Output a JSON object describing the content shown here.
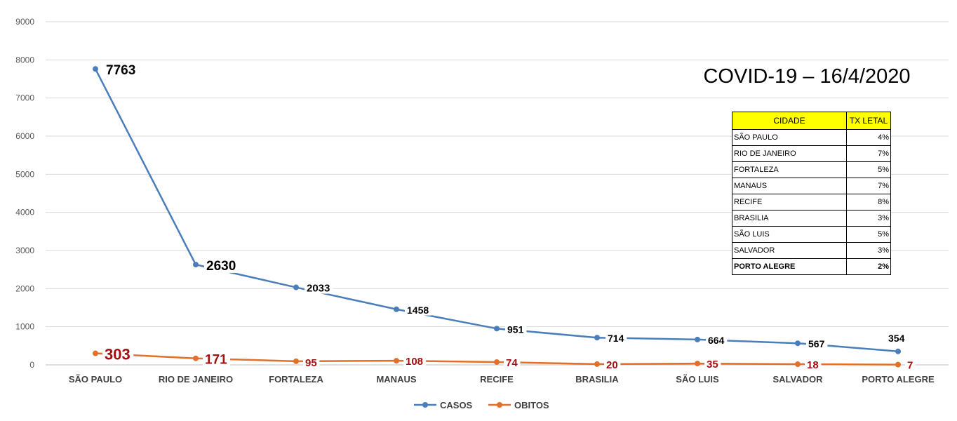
{
  "chart_data": {
    "type": "line",
    "title": "COVID-19 – 16/4/2020",
    "categories": [
      "SÃO PAULO",
      "RIO DE JANEIRO",
      "FORTALEZA",
      "MANAUS",
      "RECIFE",
      "BRASILIA",
      "SÃO LUIS",
      "SALVADOR",
      "PORTO ALEGRE"
    ],
    "series": [
      {
        "name": "CASOS",
        "color": "#4a7ebb",
        "values": [
          7763,
          2630,
          2033,
          1458,
          951,
          714,
          664,
          567,
          354
        ]
      },
      {
        "name": "OBITOS",
        "color": "#e0702a",
        "values": [
          303,
          171,
          95,
          108,
          74,
          20,
          35,
          18,
          7
        ]
      }
    ],
    "ylim": [
      0,
      9000
    ],
    "yticks": [
      0,
      1000,
      2000,
      3000,
      4000,
      5000,
      6000,
      7000,
      8000,
      9000
    ],
    "grid": true,
    "legend": "bottom"
  },
  "table": {
    "headers": [
      "CIDADE",
      "TX LETAL"
    ],
    "rows": [
      [
        "SÃO PAULO",
        "4%"
      ],
      [
        "RIO DE JANEIRO",
        "7%"
      ],
      [
        "FORTALEZA",
        "5%"
      ],
      [
        "MANAUS",
        "7%"
      ],
      [
        "RECIFE",
        "8%"
      ],
      [
        "BRASILIA",
        "3%"
      ],
      [
        "SÃO LUIS",
        "5%"
      ],
      [
        "SALVADOR",
        "3%"
      ],
      [
        "PORTO ALEGRE",
        "2%"
      ]
    ]
  }
}
